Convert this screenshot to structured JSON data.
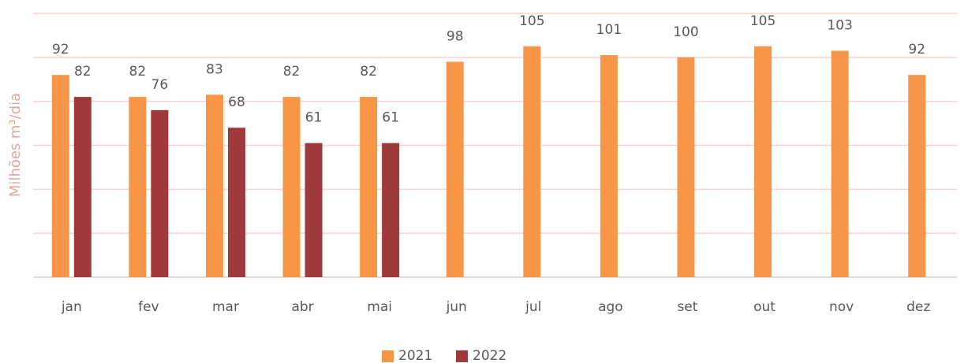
{
  "chart_data": {
    "type": "bar",
    "y_label": "Milhões m³/dia",
    "categories": [
      "jan",
      "fev",
      "mar",
      "abr",
      "mai",
      "jun",
      "jul",
      "ago",
      "set",
      "out",
      "nov",
      "dez"
    ],
    "series": [
      {
        "name": "2021",
        "color": "#f79646",
        "values": [
          92,
          82,
          83,
          82,
          82,
          98,
          105,
          101,
          100,
          105,
          103,
          92
        ]
      },
      {
        "name": "2022",
        "color": "#9e3a3b",
        "values": [
          82,
          76,
          68,
          61,
          61,
          null,
          null,
          null,
          null,
          null,
          null,
          null
        ]
      }
    ],
    "ylim": [
      0,
      120
    ],
    "yticks": [
      0,
      20,
      40,
      60,
      80,
      100,
      120
    ],
    "grid": true,
    "legend": "bottom"
  }
}
